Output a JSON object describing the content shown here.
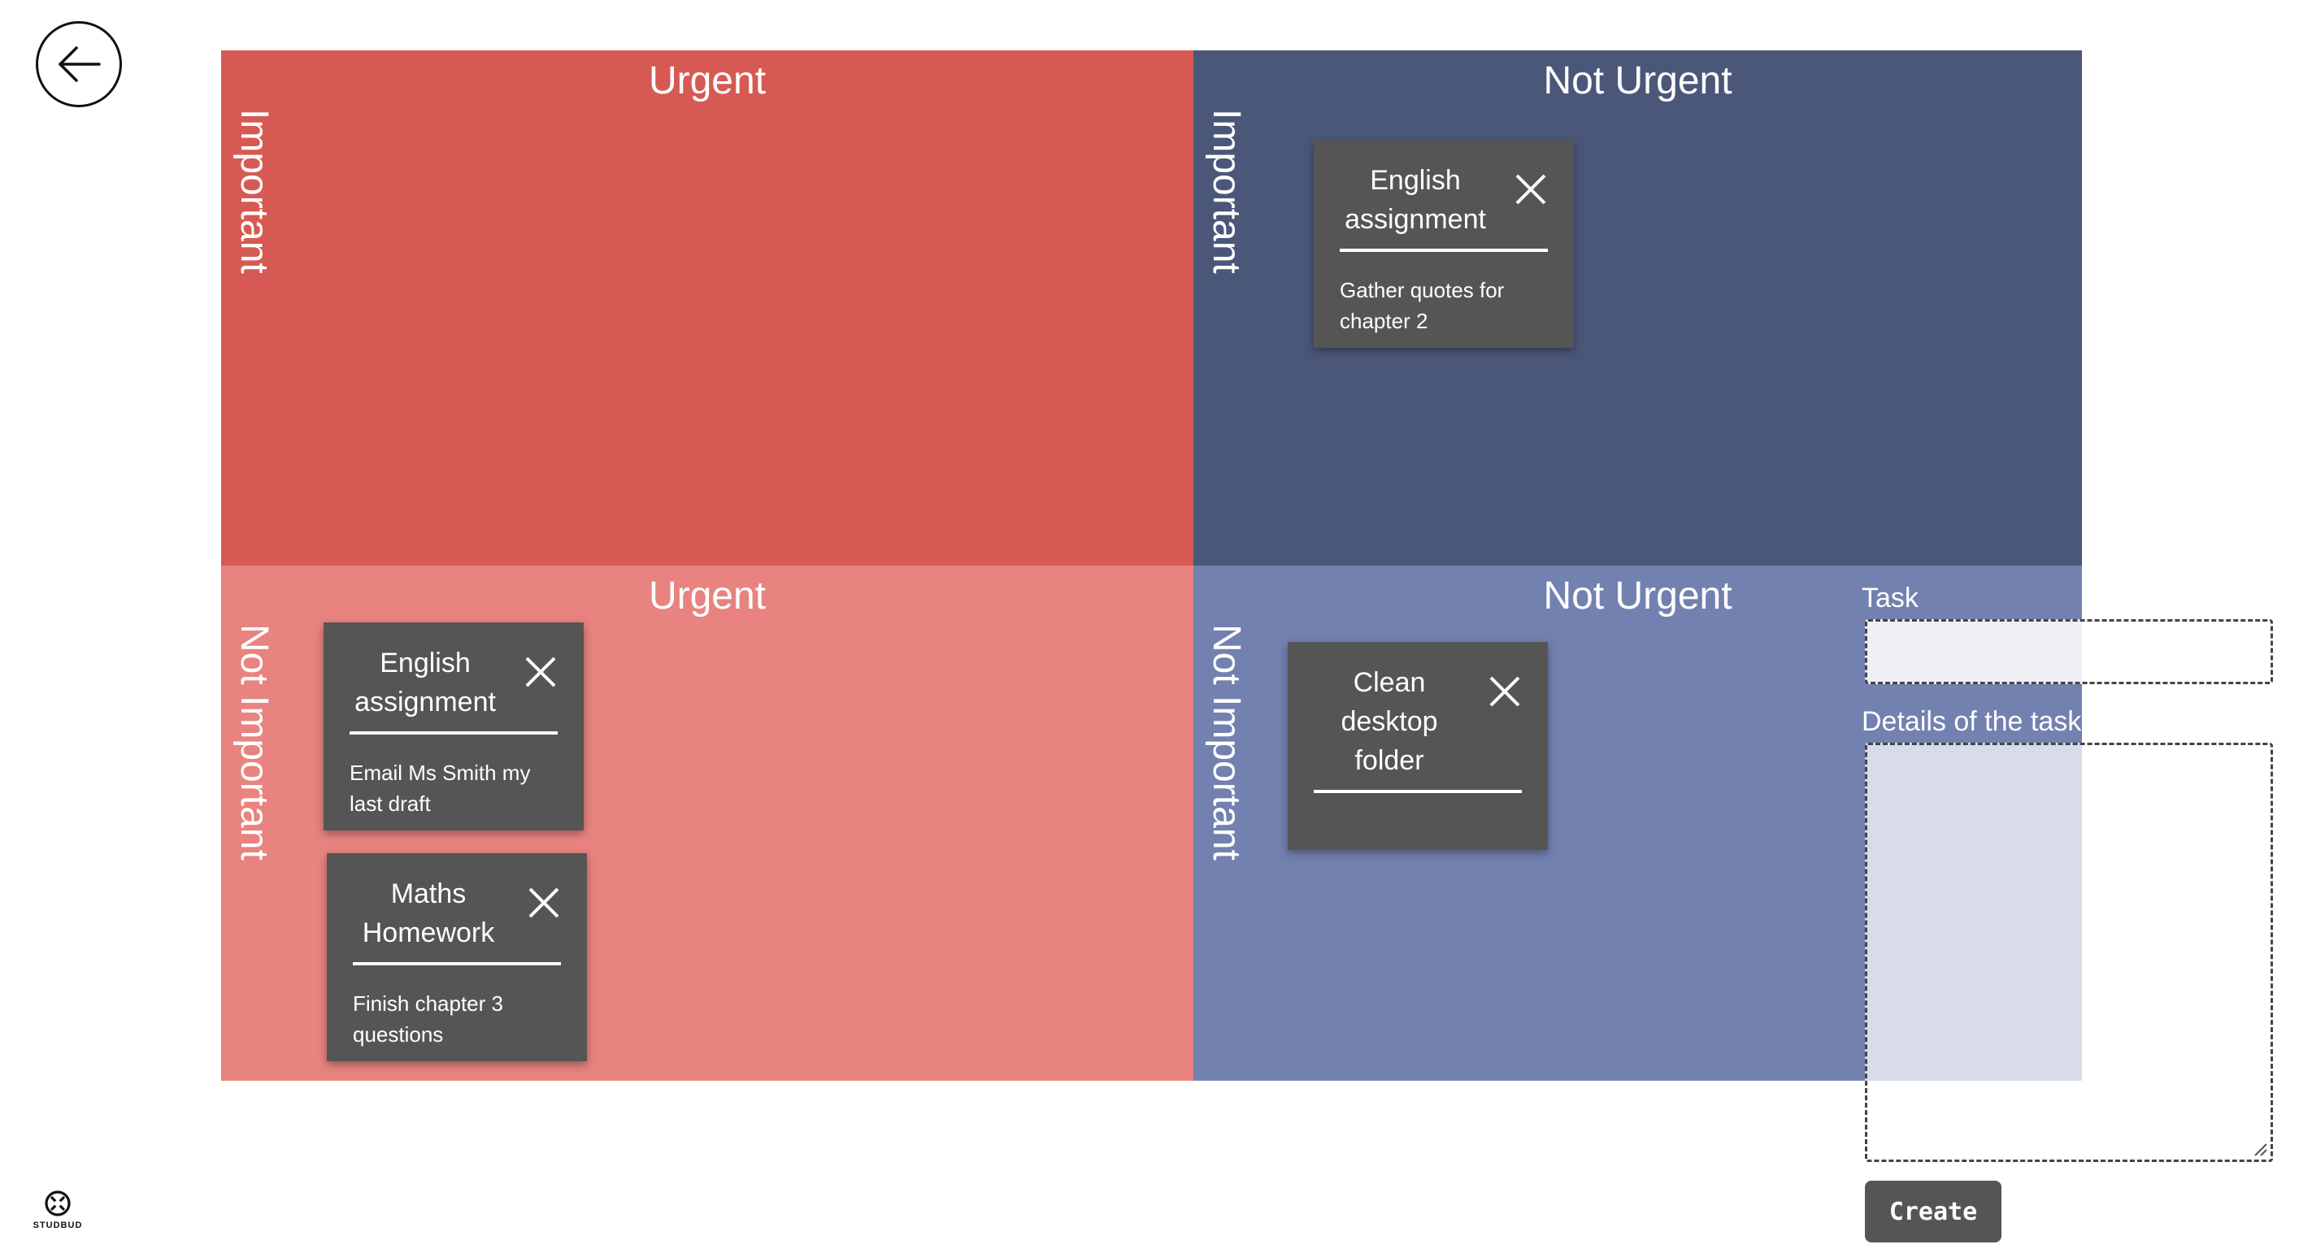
{
  "matrix": {
    "colors": {
      "urgent_important": "#d65a53",
      "not_urgent_important": "#4b5779",
      "urgent_not_important": "#e8837f",
      "not_urgent_not_important": "#7381b0",
      "card": "#555555"
    },
    "quadrants": {
      "urgent_important": {
        "col": "Urgent",
        "row": "Important"
      },
      "not_urgent_important": {
        "col": "Not Urgent",
        "row": "Important"
      },
      "urgent_not_important": {
        "col": "Urgent",
        "row": "Not Important"
      },
      "not_urgent_not_important": {
        "col": "Not Urgent",
        "row": "Not Important"
      }
    }
  },
  "tasks": {
    "not_urgent_important": [
      {
        "title": "English assignment",
        "details": "Gather quotes for chapter 2"
      }
    ],
    "urgent_not_important": [
      {
        "title": "English assignment",
        "details": "Email Ms Smith my last draft"
      },
      {
        "title": "Maths Homework",
        "details": "Finish chapter 3 questions"
      }
    ],
    "not_urgent_not_important": [
      {
        "title": "Clean desktop folder",
        "details": ""
      }
    ]
  },
  "form": {
    "task_label": "Task",
    "task_value": "",
    "details_label": "Details of the task",
    "details_value": "",
    "create_label": "Create"
  },
  "icons": {
    "back": "arrow-left-icon",
    "close": "close-icon",
    "logo": "studbud-logo"
  },
  "logo_text": "STUDBUD"
}
